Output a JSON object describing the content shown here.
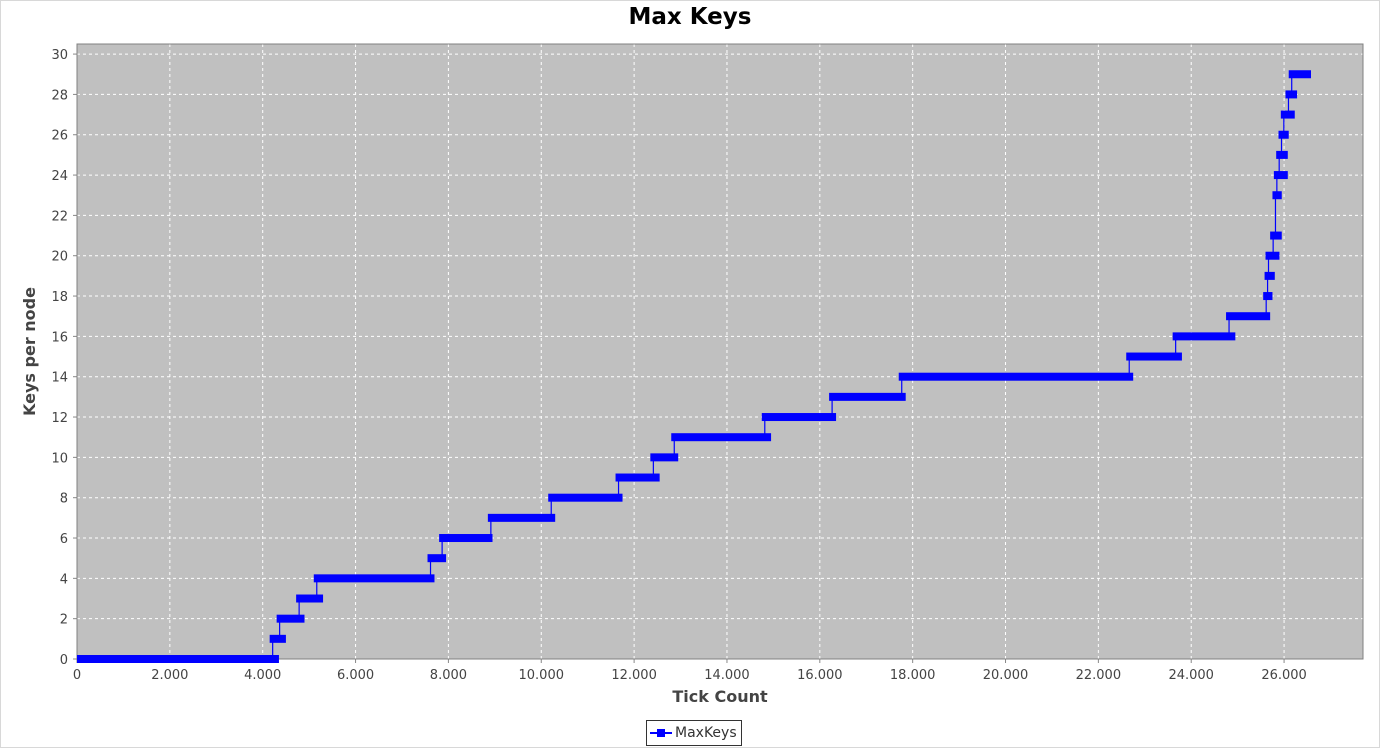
{
  "chart_data": {
    "type": "line",
    "title": "Max Keys",
    "xlabel": "Tick Count",
    "ylabel": "Keys per node",
    "xlim": [
      0,
      27700
    ],
    "ylim": [
      0,
      30.5
    ],
    "x_ticks": [
      {
        "value": 0,
        "label": "0"
      },
      {
        "value": 2000,
        "label": "2.000"
      },
      {
        "value": 4000,
        "label": "4.000"
      },
      {
        "value": 6000,
        "label": "6.000"
      },
      {
        "value": 8000,
        "label": "8.000"
      },
      {
        "value": 10000,
        "label": "10.000"
      },
      {
        "value": 12000,
        "label": "12.000"
      },
      {
        "value": 14000,
        "label": "14.000"
      },
      {
        "value": 16000,
        "label": "16.000"
      },
      {
        "value": 18000,
        "label": "18.000"
      },
      {
        "value": 20000,
        "label": "20.000"
      },
      {
        "value": 22000,
        "label": "22.000"
      },
      {
        "value": 24000,
        "label": "24.000"
      },
      {
        "value": 26000,
        "label": "26.000"
      }
    ],
    "y_ticks": [
      {
        "value": 0,
        "label": "0"
      },
      {
        "value": 2,
        "label": "2"
      },
      {
        "value": 4,
        "label": "4"
      },
      {
        "value": 6,
        "label": "6"
      },
      {
        "value": 8,
        "label": "8"
      },
      {
        "value": 10,
        "label": "10"
      },
      {
        "value": 12,
        "label": "12"
      },
      {
        "value": 14,
        "label": "14"
      },
      {
        "value": 16,
        "label": "16"
      },
      {
        "value": 18,
        "label": "18"
      },
      {
        "value": 20,
        "label": "20"
      },
      {
        "value": 22,
        "label": "22"
      },
      {
        "value": 24,
        "label": "24"
      },
      {
        "value": 26,
        "label": "26"
      },
      {
        "value": 28,
        "label": "28"
      },
      {
        "value": 30,
        "label": "30"
      }
    ],
    "grid": true,
    "legend_position": "bottom-center",
    "series": [
      {
        "name": "MaxKeys",
        "color": "#0000ff",
        "marker": "square",
        "steps": [
          {
            "x_start": 0,
            "x_end": 4350,
            "y": 0
          },
          {
            "x_start": 4150,
            "x_end": 4500,
            "y": 1
          },
          {
            "x_start": 4300,
            "x_end": 4900,
            "y": 2
          },
          {
            "x_start": 4720,
            "x_end": 5300,
            "y": 3
          },
          {
            "x_start": 5100,
            "x_end": 7700,
            "y": 4
          },
          {
            "x_start": 7550,
            "x_end": 7950,
            "y": 5
          },
          {
            "x_start": 7800,
            "x_end": 8950,
            "y": 6
          },
          {
            "x_start": 8850,
            "x_end": 10300,
            "y": 7
          },
          {
            "x_start": 10150,
            "x_end": 11750,
            "y": 8
          },
          {
            "x_start": 11600,
            "x_end": 12550,
            "y": 9
          },
          {
            "x_start": 12350,
            "x_end": 12950,
            "y": 10
          },
          {
            "x_start": 12800,
            "x_end": 14950,
            "y": 11
          },
          {
            "x_start": 14750,
            "x_end": 16350,
            "y": 12
          },
          {
            "x_start": 16200,
            "x_end": 17850,
            "y": 13
          },
          {
            "x_start": 17700,
            "x_end": 22750,
            "y": 14
          },
          {
            "x_start": 22600,
            "x_end": 23800,
            "y": 15
          },
          {
            "x_start": 23600,
            "x_end": 24950,
            "y": 16
          },
          {
            "x_start": 24750,
            "x_end": 25700,
            "y": 17
          },
          {
            "x_start": 25550,
            "x_end": 25750,
            "y": 18
          },
          {
            "x_start": 25580,
            "x_end": 25800,
            "y": 19
          },
          {
            "x_start": 25600,
            "x_end": 25900,
            "y": 20
          },
          {
            "x_start": 25700,
            "x_end": 25950,
            "y": 21
          },
          {
            "x_start": 25750,
            "x_end": 25950,
            "y": 23
          },
          {
            "x_start": 25780,
            "x_end": 26080,
            "y": 24
          },
          {
            "x_start": 25830,
            "x_end": 26080,
            "y": 25
          },
          {
            "x_start": 25880,
            "x_end": 26100,
            "y": 26
          },
          {
            "x_start": 25930,
            "x_end": 26230,
            "y": 27
          },
          {
            "x_start": 26030,
            "x_end": 26280,
            "y": 28
          },
          {
            "x_start": 26100,
            "x_end": 26580,
            "y": 29
          }
        ]
      }
    ]
  }
}
